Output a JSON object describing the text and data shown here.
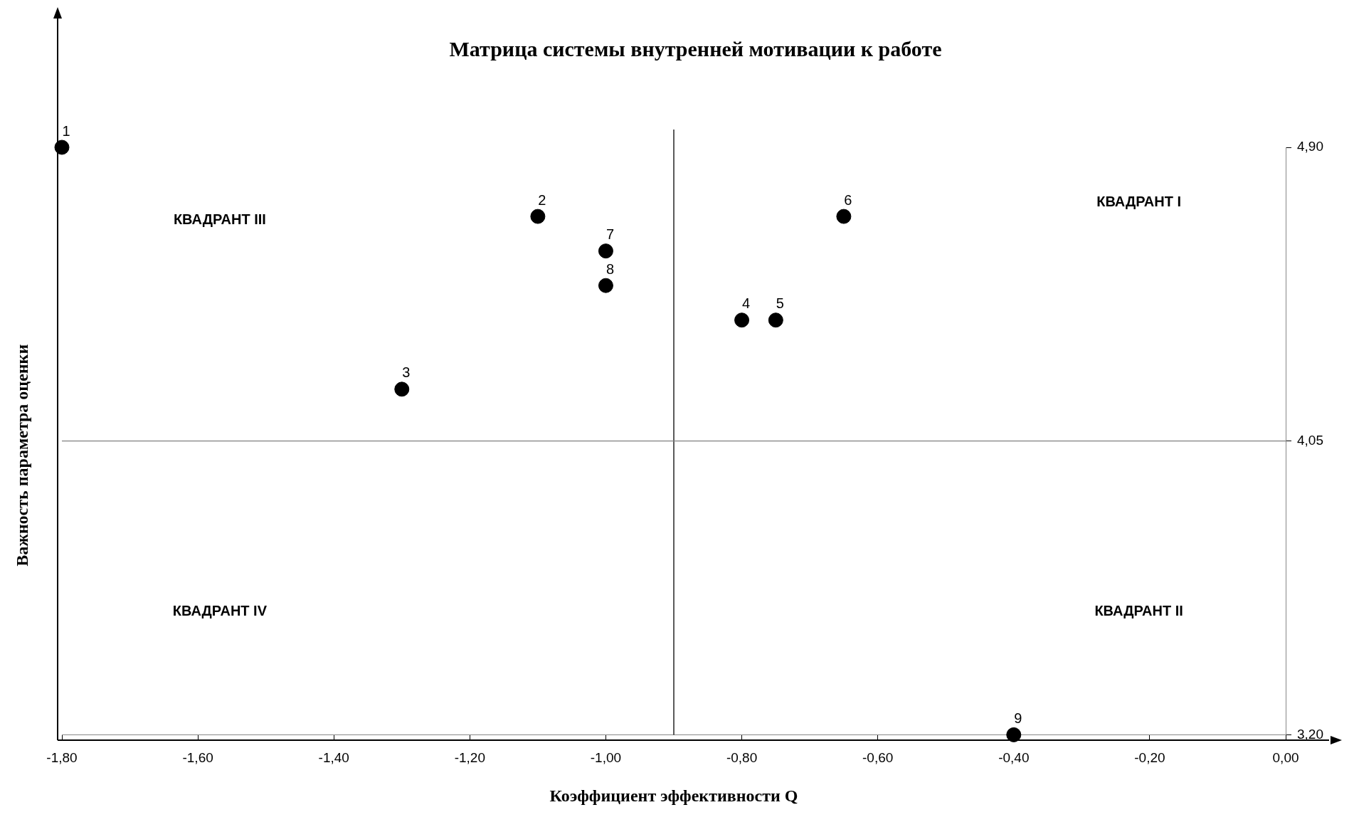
{
  "chart_data": {
    "type": "scatter",
    "title": "Матрица системы внутренней мотивации к работе",
    "xlabel": "Коэффициент эффективности Q",
    "ylabel": "Важность параметра оценки",
    "series": [
      {
        "color": "#000000",
        "x": [
          -1.8,
          -1.1,
          -1.3,
          -0.8,
          -0.75,
          -0.65,
          -1.0,
          -1.0,
          -0.4
        ],
        "values": [
          4.9,
          4.7,
          4.2,
          4.4,
          4.4,
          4.7,
          4.6,
          4.5,
          3.2
        ]
      }
    ],
    "marker": "circle",
    "xlim": [
      -1.8,
      0
    ],
    "xticks": [
      {
        "value": -1.8,
        "label": "-1,80"
      },
      {
        "value": -1.6,
        "label": "-1,60"
      },
      {
        "value": -1.4,
        "label": "-1,40"
      },
      {
        "value": -1.2,
        "label": "-1,20"
      },
      {
        "value": -1.0,
        "label": "-1,00"
      },
      {
        "value": -0.8,
        "label": "-0,80"
      },
      {
        "value": -0.6,
        "label": "-0,60"
      },
      {
        "value": -0.4,
        "label": "-0,40"
      },
      {
        "value": -0.2,
        "label": "-0,20"
      },
      {
        "value": 0,
        "label": "0,00"
      }
    ],
    "ylim": [
      3.2,
      4.9
    ],
    "yticks": [
      {
        "value": 3.2,
        "label": "3,20"
      },
      {
        "value": 4.05,
        "label": "4,05"
      },
      {
        "value": 4.9,
        "label": "4,90"
      }
    ],
    "ref_lines": [
      {
        "axis": "x",
        "value": -0.9,
        "color": "#000000"
      },
      {
        "axis": "y",
        "value": 4.05,
        "color": "#808080"
      }
    ],
    "annotations": [
      "КВАДРАНТ III",
      "КВАДРАНТ I",
      "КВАДРАНТ IV",
      "КВАДРАНТ II",
      {
        "text": "1",
        "x": -1.8,
        "y": 4.9
      },
      {
        "text": "2",
        "x": -1.1,
        "y": 4.7
      },
      {
        "text": "3",
        "x": -1.3,
        "y": 4.2
      },
      {
        "text": "4",
        "x": -0.8,
        "y": 4.4
      },
      {
        "text": "5",
        "x": -0.75,
        "y": 4.4
      },
      {
        "text": "6",
        "x": -0.65,
        "y": 4.7
      },
      {
        "text": "7",
        "x": -1.0,
        "y": 4.6
      },
      {
        "text": "8",
        "x": -1.0,
        "y": 4.5
      },
      {
        "text": "9",
        "x": -0.4,
        "y": 3.2
      }
    ],
    "grid": false,
    "legend": false
  }
}
